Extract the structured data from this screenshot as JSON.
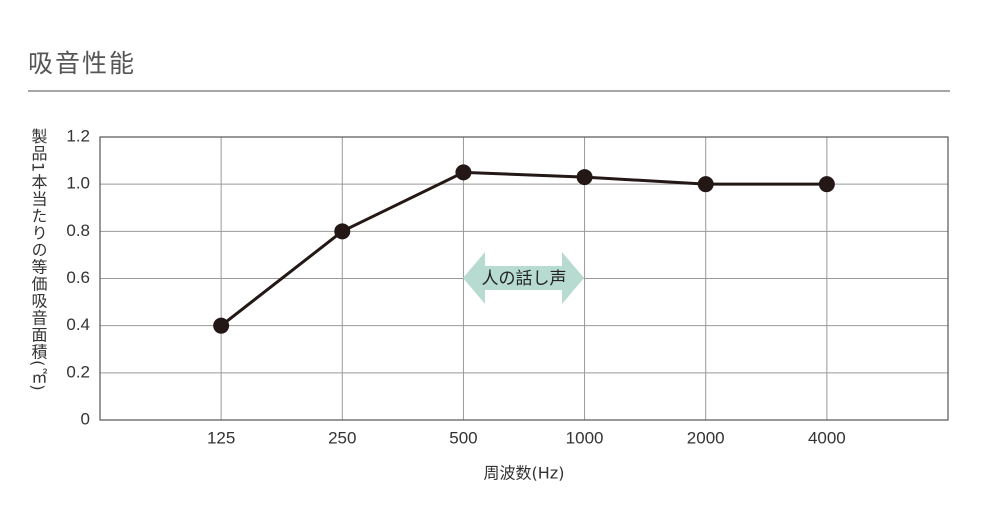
{
  "chart_data": {
    "type": "line",
    "title": "吸音性能",
    "y_label": "製品1本当たりの等価吸音面積(㎡)",
    "x_label": "周波数(Hz)",
    "annotation": "人の話し声",
    "categories": [
      "125",
      "250",
      "500",
      "1000",
      "2000",
      "4000"
    ],
    "values": [
      0.4,
      0.8,
      1.05,
      1.03,
      1.0,
      1.0
    ],
    "color": "#231815",
    "ylim": [
      0,
      1.2
    ],
    "yticks": [
      0,
      0.2,
      0.4,
      0.6,
      0.8,
      {
        "value": 1,
        "label": "1.0"
      },
      1.2
    ],
    "grid": true
  }
}
